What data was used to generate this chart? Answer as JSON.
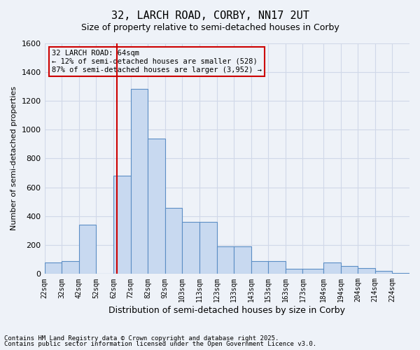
{
  "title": "32, LARCH ROAD, CORBY, NN17 2UT",
  "subtitle": "Size of property relative to semi-detached houses in Corby",
  "xlabel": "Distribution of semi-detached houses by size in Corby",
  "ylabel": "Number of semi-detached properties",
  "property_size": 64,
  "property_label": "32 LARCH ROAD: 64sqm",
  "annotation_line1": "← 12% of semi-detached houses are smaller (528)",
  "annotation_line2": "87% of semi-detached houses are larger (3,952) →",
  "footer_line1": "Contains HM Land Registry data © Crown copyright and database right 2025.",
  "footer_line2": "Contains public sector information licensed under the Open Government Licence v3.0.",
  "bin_edges": [
    22,
    32,
    42,
    52,
    62,
    72,
    82,
    92,
    102,
    112,
    122,
    132,
    142,
    152,
    162,
    172,
    184,
    194,
    204,
    214,
    224,
    234
  ],
  "bin_labels": [
    "22sqm",
    "32sqm",
    "42sqm",
    "52sqm",
    "62sqm",
    "72sqm",
    "82sqm",
    "92sqm",
    "103sqm",
    "113sqm",
    "123sqm",
    "133sqm",
    "143sqm",
    "153sqm",
    "163sqm",
    "173sqm",
    "184sqm",
    "194sqm",
    "204sqm",
    "214sqm",
    "224sqm"
  ],
  "counts": [
    80,
    90,
    340,
    0,
    680,
    1280,
    940,
    460,
    360,
    360,
    190,
    190,
    90,
    90,
    35,
    35,
    80,
    55,
    40,
    20,
    5
  ],
  "bar_color": "#c8d9f0",
  "bar_edge_color": "#5b8ec5",
  "red_line_color": "#cc0000",
  "annotation_box_color": "#cc0000",
  "grid_color": "#d0d8e8",
  "bg_color": "#eef2f8",
  "ylim": [
    0,
    1600
  ],
  "yticks": [
    0,
    200,
    400,
    600,
    800,
    1000,
    1200,
    1400,
    1600
  ]
}
